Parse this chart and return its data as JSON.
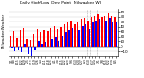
{
  "title_left": "Milwaukee Weather",
  "title_center": "Daily High/Low  Dew Point  Milwaukee WI",
  "ylim": [
    -20,
    75
  ],
  "yticks": [
    -10,
    0,
    10,
    20,
    30,
    40,
    50,
    60,
    70
  ],
  "background_color": "#ffffff",
  "plot_bg": "#ffffff",
  "bar_width": 0.4,
  "high_color": "#ff0000",
  "low_color": "#0000ff",
  "dashed_line_color": "#aaaaaa",
  "categories": [
    "1/1",
    "1/8",
    "1/15",
    "1/22",
    "1/29",
    "2/5",
    "2/12",
    "2/19",
    "2/26",
    "3/4",
    "3/11",
    "3/18",
    "3/25",
    "4/1",
    "4/8",
    "4/15",
    "4/22",
    "4/29",
    "5/6",
    "5/13",
    "5/20",
    "5/27",
    "6/3",
    "6/10",
    "6/17",
    "6/24",
    "7/1",
    "7/8",
    "7/15",
    "7/22",
    "7/29",
    "8/5"
  ],
  "high_vals": [
    22,
    30,
    18,
    32,
    38,
    15,
    12,
    25,
    35,
    28,
    32,
    30,
    38,
    42,
    35,
    40,
    45,
    50,
    52,
    45,
    48,
    55,
    58,
    52,
    60,
    62,
    65,
    60,
    62,
    68,
    62,
    60
  ],
  "low_vals": [
    -5,
    -10,
    -8,
    -12,
    5,
    -15,
    -18,
    -8,
    10,
    5,
    8,
    5,
    15,
    20,
    10,
    22,
    28,
    32,
    38,
    28,
    32,
    42,
    45,
    35,
    48,
    52,
    55,
    48,
    52,
    58,
    50,
    48
  ],
  "dashed_vlines_x": [
    22.5,
    23.5,
    24.5,
    25.5
  ],
  "legend_high": "High",
  "legend_low": "Low"
}
